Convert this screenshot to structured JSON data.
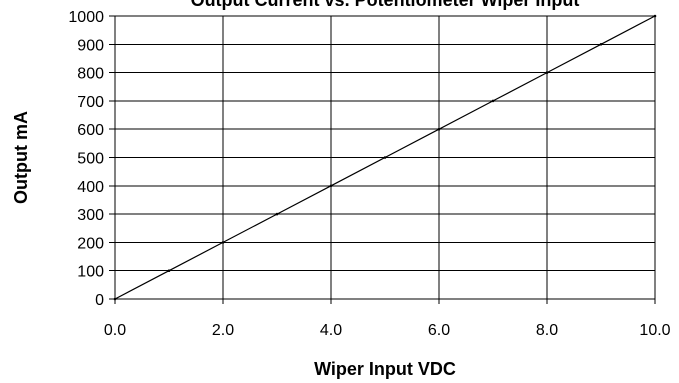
{
  "chart_data": {
    "type": "line",
    "title": "Output Current vs. Potentiometer Wiper Input",
    "xlabel": "Wiper Input VDC",
    "ylabel": "Output mA",
    "xlim": [
      0,
      10
    ],
    "ylim": [
      0,
      1000
    ],
    "x_ticks": [
      0,
      2,
      4,
      6,
      8,
      10
    ],
    "x_tick_labels": [
      "0.0",
      "2.0",
      "4.0",
      "6.0",
      "8.0",
      "10.0"
    ],
    "y_ticks": [
      0,
      100,
      200,
      300,
      400,
      500,
      600,
      700,
      800,
      900,
      1000
    ],
    "y_tick_labels": [
      "0",
      "100",
      "200",
      "300",
      "400",
      "500",
      "600",
      "700",
      "800",
      "900",
      "1000"
    ],
    "grid": "major-both",
    "series": [
      {
        "x": [
          0,
          1,
          2,
          3,
          4,
          5,
          6,
          7,
          8,
          9,
          10
        ],
        "y": [
          0,
          100,
          200,
          300,
          400,
          500,
          600,
          700,
          800,
          900,
          1000
        ]
      }
    ],
    "colors": {
      "line": "#000000",
      "grid": "#000000",
      "background": "#ffffff"
    }
  }
}
